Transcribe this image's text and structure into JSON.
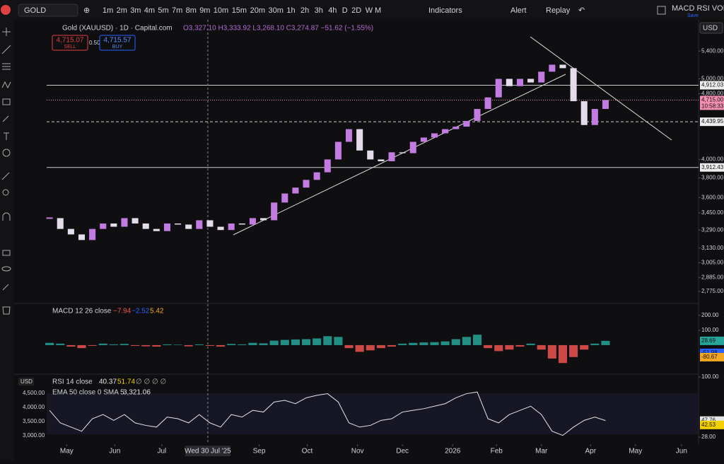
{
  "toolbar": {
    "symbol": "GOLD",
    "intervals": [
      "1m",
      "2m",
      "3m",
      "4m",
      "5m",
      "7m",
      "8m",
      "9m",
      "10m",
      "15m",
      "20m",
      "30m",
      "1h",
      "2h",
      "3h",
      "4h",
      "D",
      "2D",
      "W",
      "M"
    ],
    "indicators": "Indicators",
    "alert": "Alert",
    "replay": "Replay",
    "layout_name": "MACD RSI VOL",
    "save": "Save",
    "currency": "USD"
  },
  "legend": {
    "title": "Gold (XAUUSD) · 1D · Capital.com",
    "ohlc": "O3,327.10 H3,333.92 L3,268.10 C3,274.87 −51.62 (−1.55%)",
    "sell_price": "4,715.07",
    "sell": "SELL",
    "spread": "0.50",
    "buy_price": "4,715.57",
    "buy": "BUY"
  },
  "chart_data": [
    {
      "type": "candlestick",
      "log_scale": true,
      "up_color": "#c27be0",
      "down_color": "#e4dcea",
      "closes": [
        3400,
        3300,
        3250,
        3200,
        3300,
        3350,
        3320,
        3400,
        3350,
        3300,
        3280,
        3350,
        3340,
        3300,
        3380,
        3320,
        3290,
        3350,
        3340,
        3400,
        3380,
        3550,
        3640,
        3700,
        3780,
        3860,
        4000,
        4200,
        4350,
        4100,
        4000,
        3980,
        4080,
        4070,
        4200,
        4250,
        4300,
        4350,
        4380,
        4450,
        4600,
        4750,
        5000,
        4900,
        5000,
        4950,
        5100,
        5200,
        5150,
        4700,
        4400,
        4600,
        4715
      ],
      "xlim": [
        -1,
        60.5
      ],
      "ylim": [
        2690,
        5865
      ],
      "yticks": [
        {
          "value": 5400,
          "label": "5,400.00"
        },
        {
          "value": 5000,
          "label": "5,000.00"
        },
        {
          "value": 4800,
          "label": "4,800.00"
        },
        {
          "value": 4000,
          "label": "4,000.00"
        },
        {
          "value": 3800,
          "label": "3,800.00"
        },
        {
          "value": 3600,
          "label": "3,600.00"
        },
        {
          "value": 3450,
          "label": "3,450.00"
        },
        {
          "value": 3290,
          "label": "3,290.00"
        },
        {
          "value": 3130,
          "label": "3,130.00"
        },
        {
          "value": 3005,
          "label": "3,005.00"
        },
        {
          "value": 2885,
          "label": "2,885.00"
        },
        {
          "value": 2775,
          "label": "2,775.00"
        }
      ],
      "xticks": [
        {
          "value": 1.6,
          "label": "May"
        },
        {
          "value": 6.1,
          "label": "Jun"
        },
        {
          "value": 10.5,
          "label": "Jul"
        },
        {
          "value": 19.6,
          "label": "Sep"
        },
        {
          "value": 24.1,
          "label": "Oct"
        },
        {
          "value": 28.8,
          "label": "Nov"
        },
        {
          "value": 33,
          "label": "Dec"
        },
        {
          "value": 37.7,
          "label": "2026"
        },
        {
          "value": 41.8,
          "label": "Feb"
        },
        {
          "value": 46,
          "label": "Mar"
        },
        {
          "value": 50.6,
          "label": "Apr"
        },
        {
          "value": 54.8,
          "label": "May"
        },
        {
          "value": 59.1,
          "label": "Jun"
        }
      ],
      "crosshair": {
        "value": 14.8,
        "label": "Wed 30 Jul '25"
      },
      "price_lines": [
        {
          "value": 4912.03,
          "label": "4,912.03"
        },
        {
          "value": 4439.95,
          "label": "4,439.95"
        },
        {
          "value": 3912.43,
          "label": "3,912.43"
        }
      ],
      "last_price": {
        "value": 4715,
        "label": "4,715.00",
        "countdown": "10:58:33"
      }
    },
    {
      "type": "bar",
      "title": "MACD 12 26 close",
      "legend_values": [
        "−7.94",
        "−2.52",
        "5.42"
      ],
      "values": [
        15,
        10,
        -10,
        -20,
        -5,
        10,
        5,
        8,
        -5,
        -8,
        -10,
        5,
        3,
        -8,
        5,
        -5,
        -10,
        8,
        5,
        15,
        12,
        30,
        35,
        38,
        40,
        45,
        60,
        55,
        -20,
        -45,
        -35,
        -20,
        -10,
        10,
        15,
        18,
        20,
        25,
        40,
        55,
        70,
        -20,
        -40,
        -30,
        -10,
        10,
        -30,
        -90,
        -120,
        -80,
        -30,
        10,
        28.69
      ],
      "ylim": [
        -190,
        270
      ],
      "yticks": [
        {
          "value": 100,
          "label": "100.00"
        },
        {
          "value": 200,
          "label": "200.00"
        }
      ],
      "last_labels": [
        {
          "value": 28.69,
          "label": "28.69",
          "color": "#26a69a"
        },
        {
          "value": -51.98,
          "label": "-51.98",
          "color": "#2962ff"
        },
        {
          "value": -80.67,
          "label": "-80.67",
          "color": "#f5a623"
        }
      ]
    },
    {
      "type": "line",
      "title": "RSI 14 close",
      "legend_values": [
        "40.37",
        "51.74",
        "∅ ∅ ∅ ∅"
      ],
      "overlay_title": "EMA 50 close 0 SMA 5",
      "overlay_value": "3,321.06",
      "currency": "USD",
      "overlay_ticks": [
        "4,500.00",
        "4,000.00",
        "3,500.00",
        "3,000.00"
      ],
      "color": "#e6e6e6",
      "values": [
        60,
        45,
        40,
        35,
        50,
        55,
        48,
        55,
        45,
        42,
        40,
        52,
        50,
        45,
        55,
        45,
        40,
        55,
        52,
        60,
        58,
        70,
        72,
        68,
        75,
        78,
        80,
        70,
        45,
        40,
        42,
        48,
        50,
        58,
        60,
        62,
        65,
        68,
        75,
        80,
        82,
        50,
        45,
        55,
        60,
        65,
        55,
        35,
        30,
        40,
        48,
        52,
        47.76
      ],
      "ylim": [
        19.5,
        102.5
      ],
      "yticks": [
        {
          "value": 100,
          "label": "100.00"
        },
        {
          "value": 28,
          "label": "28.00"
        }
      ],
      "last_labels": [
        {
          "value": 47.76,
          "label": "47.76",
          "color": "#e6e6e6"
        },
        {
          "value": 42.53,
          "label": "42.53",
          "color": "#f5d000"
        }
      ]
    }
  ]
}
